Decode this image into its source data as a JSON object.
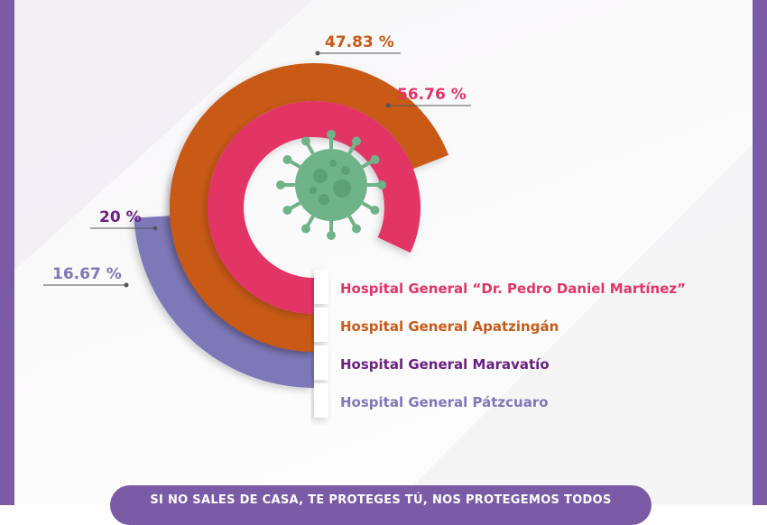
{
  "frame_color": "#7b5aa6",
  "chart_data": {
    "type": "radial-bar",
    "title": "",
    "series": [
      {
        "name": "Hospital General “Dr. Pedro Daniel Martínez”",
        "value": 56.76,
        "label": "56.76 %",
        "color": "#e23466"
      },
      {
        "name": "Hospital General Apatzingán",
        "value": 47.83,
        "label": "47.83 %",
        "color": "#c85a18"
      },
      {
        "name": "Hospital General Maravatío",
        "value": 20,
        "label": "20 %",
        "color": "#6b2182"
      },
      {
        "name": "Hospital General Pátzcuaro",
        "value": 16.67,
        "label": "16.67 %",
        "color": "#7d78b8"
      }
    ]
  },
  "decor": {
    "icon": "virus-icon",
    "icon_color": "#6fb38a"
  },
  "banner": {
    "text": "SI NO SALES DE CASA, TE PROTEGES TÚ, NOS PROTEGEMOS TODOS",
    "color": "#7b5aa6"
  }
}
